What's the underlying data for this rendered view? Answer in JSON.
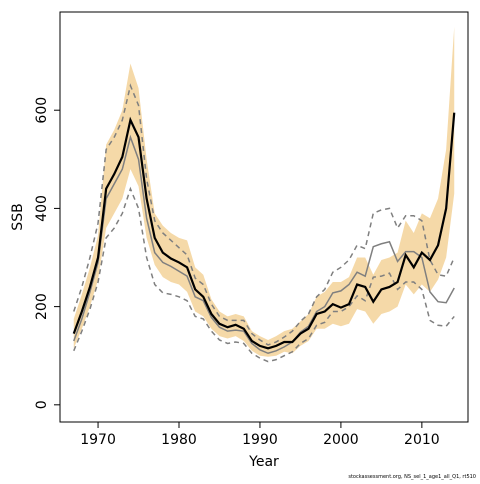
{
  "chart_data": {
    "type": "line",
    "xlabel": "Year",
    "ylabel": "SSB",
    "footnote": "stockassessment.org, NS_sel_1_age1_all_Q1, rt510",
    "x": [
      1967,
      1968,
      1969,
      1970,
      1971,
      1972,
      1973,
      1974,
      1975,
      1976,
      1977,
      1978,
      1979,
      1980,
      1981,
      1982,
      1983,
      1984,
      1985,
      1986,
      1987,
      1988,
      1989,
      1990,
      1991,
      1992,
      1993,
      1994,
      1995,
      1996,
      1997,
      1998,
      1999,
      2000,
      2001,
      2002,
      2003,
      2004,
      2005,
      2006,
      2007,
      2008,
      2009,
      2010,
      2011,
      2012,
      2013,
      2014
    ],
    "band": {
      "color": "#f5d9a8",
      "upper": [
        175,
        225,
        280,
        345,
        530,
        560,
        600,
        695,
        645,
        500,
        390,
        365,
        350,
        340,
        335,
        280,
        265,
        215,
        190,
        180,
        185,
        180,
        150,
        140,
        132,
        140,
        150,
        155,
        170,
        185,
        220,
        230,
        250,
        250,
        260,
        300,
        300,
        265,
        295,
        300,
        310,
        375,
        350,
        390,
        380,
        420,
        520,
        770
      ],
      "lower": [
        115,
        155,
        200,
        255,
        360,
        390,
        420,
        480,
        445,
        340,
        285,
        260,
        250,
        245,
        230,
        190,
        180,
        155,
        140,
        135,
        140,
        130,
        110,
        100,
        98,
        100,
        108,
        105,
        120,
        130,
        155,
        155,
        165,
        160,
        165,
        195,
        190,
        165,
        185,
        190,
        200,
        245,
        225,
        245,
        230,
        255,
        300,
        430
      ]
    },
    "series": [
      {
        "color": "#7f7f7f",
        "linestyle": "dashed",
        "values": [
          190,
          240,
          300,
          370,
          520,
          545,
          580,
          650,
          610,
          460,
          375,
          350,
          335,
          320,
          305,
          258,
          245,
          205,
          180,
          172,
          172,
          172,
          145,
          132,
          122,
          128,
          138,
          150,
          170,
          185,
          220,
          235,
          270,
          280,
          295,
          325,
          318,
          390,
          397,
          400,
          360,
          385,
          385,
          375,
          295,
          265,
          262,
          300
        ]
      },
      {
        "color": "#7f7f7f",
        "linestyle": "dashed",
        "values": [
          110,
          150,
          195,
          250,
          340,
          360,
          390,
          440,
          400,
          300,
          245,
          228,
          225,
          220,
          212,
          180,
          175,
          150,
          132,
          125,
          128,
          125,
          105,
          95,
          88,
          92,
          100,
          108,
          125,
          135,
          162,
          168,
          190,
          190,
          200,
          222,
          212,
          260,
          262,
          268,
          235,
          250,
          250,
          235,
          172,
          162,
          160,
          180
        ]
      },
      {
        "color": "#7f7f7f",
        "linestyle": "solid",
        "values": [
          130,
          175,
          230,
          290,
          420,
          450,
          480,
          545,
          500,
          380,
          310,
          290,
          282,
          272,
          262,
          220,
          212,
          178,
          158,
          150,
          152,
          150,
          125,
          112,
          105,
          110,
          118,
          128,
          148,
          160,
          190,
          200,
          228,
          232,
          245,
          270,
          262,
          322,
          328,
          332,
          292,
          312,
          312,
          300,
          230,
          210,
          208,
          238
        ]
      },
      {
        "color": "#000000",
        "linestyle": "solid",
        "values": [
          145,
          190,
          240,
          300,
          440,
          470,
          505,
          580,
          545,
          420,
          340,
          310,
          298,
          290,
          280,
          235,
          220,
          185,
          165,
          158,
          163,
          155,
          130,
          120,
          115,
          120,
          128,
          128,
          145,
          155,
          185,
          190,
          205,
          198,
          205,
          245,
          240,
          210,
          235,
          240,
          250,
          305,
          280,
          310,
          295,
          325,
          400,
          595
        ]
      }
    ],
    "xlim": [
      1965.3,
      2015.7
    ],
    "xticks": [
      1970,
      1980,
      1990,
      2000,
      2010
    ],
    "ylim": [
      -35,
      800
    ],
    "yticks": [
      0,
      200,
      400,
      600
    ]
  }
}
